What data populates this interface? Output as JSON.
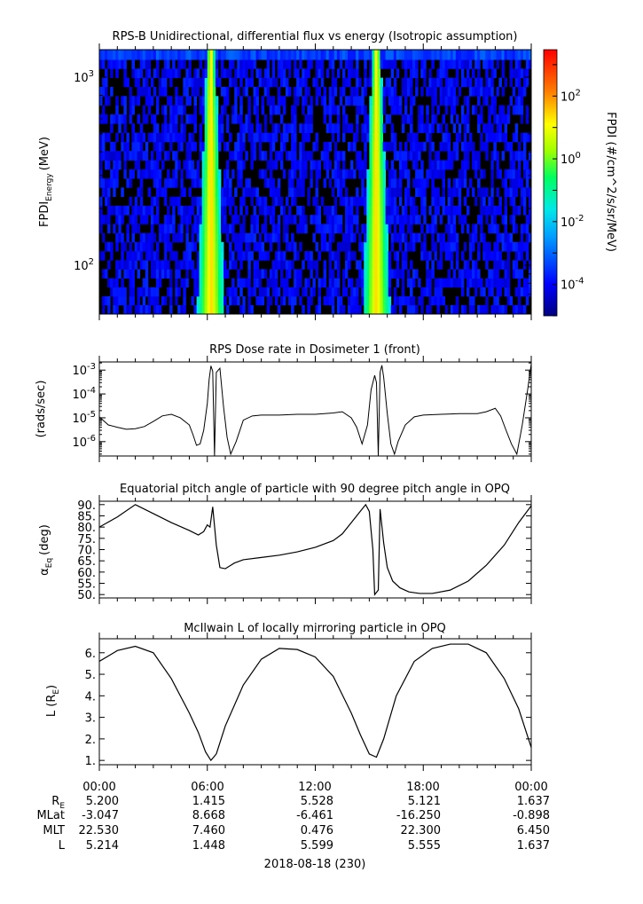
{
  "chart_data": [
    {
      "type": "heatmap",
      "title": "RPS-B  Unidirectional, differential flux vs energy (Isotropic assumption)",
      "ylabel_main": "FPDI",
      "ylabel_sub": "Energy",
      "ylabel_unit": "(MeV)",
      "yscale": "log",
      "ylim": [
        55,
        1400
      ],
      "yticks": [
        {
          "value": 100,
          "base": "10",
          "exp": "2"
        },
        {
          "value": 1000,
          "base": "10",
          "exp": "3"
        }
      ],
      "energy_bins": [
        58,
        65,
        72,
        81,
        90,
        101,
        112,
        126,
        140,
        157,
        175,
        196,
        219,
        245,
        274,
        306,
        342,
        383,
        428,
        479,
        536,
        600,
        670,
        750,
        840,
        940,
        1050,
        1175,
        1310
      ],
      "colorbar": {
        "label": "FPDI (#/cm^2/s/sr/MeV)",
        "scale": "log",
        "range": [
          1e-05,
          3000.0
        ],
        "ticks": [
          {
            "value": 0.0001,
            "base": "10",
            "exp": "-4"
          },
          {
            "value": 0.01,
            "base": "10",
            "exp": "-2"
          },
          {
            "value": 1,
            "base": "10",
            "exp": "0"
          },
          {
            "value": 100,
            "base": "10",
            "exp": "2"
          }
        ]
      },
      "belt_crossings_hours": [
        6.2,
        15.4
      ],
      "background_flux": 0.001,
      "peak_flux": 30
    },
    {
      "type": "line",
      "title": "RPS  Dose rate in Dosimeter 1 (front)",
      "ylabel": "(rads/sec)",
      "yscale": "log",
      "ylim": [
        2.5e-07,
        0.0022
      ],
      "yticks": [
        {
          "value": 1e-06,
          "base": "10",
          "exp": "-6"
        },
        {
          "value": 1e-05,
          "base": "10",
          "exp": "-5"
        },
        {
          "value": 0.0001,
          "base": "10",
          "exp": "-4"
        },
        {
          "value": 0.001,
          "base": "10",
          "exp": "-3"
        }
      ],
      "x_hours": [
        0,
        0.5,
        1,
        1.5,
        2,
        2.5,
        3,
        3.5,
        4,
        4.5,
        5,
        5.2,
        5.4,
        5.6,
        5.8,
        6.0,
        6.1,
        6.2,
        6.3,
        6.4,
        6.5,
        6.7,
        6.9,
        7.1,
        7.3,
        7.6,
        8.0,
        8.5,
        9,
        10,
        11,
        12,
        13,
        13.5,
        14,
        14.3,
        14.6,
        14.9,
        15.1,
        15.3,
        15.4,
        15.5,
        15.6,
        15.7,
        15.8,
        16.0,
        16.2,
        16.4,
        16.6,
        17,
        17.5,
        18,
        19,
        20,
        21,
        21.5,
        22,
        22.3,
        22.6,
        22.9,
        23.2,
        23.5,
        23.8,
        24
      ],
      "values": [
        1.1e-05,
        5e-06,
        4e-06,
        3.3e-06,
        3.5e-06,
        4.3e-06,
        7e-06,
        1.2e-05,
        1.4e-05,
        1e-05,
        5e-06,
        2e-06,
        7e-07,
        8e-07,
        3e-06,
        4e-05,
        0.0004,
        0.0015,
        0.0009,
        2.5e-07,
        0.0008,
        0.0012,
        3e-05,
        1.5e-06,
        3e-07,
        1e-06,
        8e-06,
        1.2e-05,
        1.3e-05,
        1.3e-05,
        1.4e-05,
        1.4e-05,
        1.6e-05,
        1.8e-05,
        1e-05,
        4e-06,
        8e-07,
        5e-06,
        0.00015,
        0.0006,
        0.0003,
        2.5e-07,
        0.0008,
        0.0016,
        0.0005,
        1.5e-05,
        8e-07,
        3e-07,
        1e-06,
        5e-06,
        1.1e-05,
        1.3e-05,
        1.4e-05,
        1.5e-05,
        1.5e-05,
        1.8e-05,
        2.5e-05,
        1.2e-05,
        3e-06,
        8e-07,
        3e-07,
        5e-06,
        0.00015,
        0.0018
      ]
    },
    {
      "type": "line",
      "title": "Equatorial pitch angle of particle with 90 degree pitch angle in OPQ",
      "ylabel_main": "α",
      "ylabel_sub": "Eq",
      "ylabel_unit": "(deg)",
      "ylim": [
        48.5,
        91.5
      ],
      "yticks": [
        50,
        55,
        60,
        65,
        70,
        75,
        80,
        85,
        90
      ],
      "ytick_labels": [
        "50.",
        "55.",
        "60.",
        "65.",
        "70.",
        "75.",
        "80.",
        "85.",
        "90."
      ],
      "x_hours": [
        0,
        1,
        2,
        3,
        4,
        5,
        5.5,
        5.8,
        6.0,
        6.15,
        6.3,
        6.5,
        6.7,
        7.0,
        7.5,
        8,
        9,
        10,
        11,
        12,
        13,
        13.5,
        14,
        14.5,
        14.8,
        15.0,
        15.2,
        15.3,
        15.5,
        15.6,
        15.8,
        16.0,
        16.3,
        16.7,
        17.2,
        17.8,
        18.5,
        19.5,
        20.5,
        21.5,
        22.5,
        23.3,
        24
      ],
      "values": [
        80,
        84.5,
        90,
        86,
        82,
        78.5,
        76.5,
        78,
        81,
        80,
        89,
        72,
        62,
        61.5,
        64,
        65.5,
        66.5,
        67.5,
        69,
        71,
        74,
        77,
        82,
        87,
        90,
        87,
        70,
        50,
        52,
        88,
        73,
        62,
        56,
        53,
        51.2,
        50.5,
        50.5,
        52,
        56,
        63,
        72,
        82,
        89.5
      ]
    },
    {
      "type": "line",
      "title": "McIlwain L of locally mirroring particle in OPQ",
      "ylabel_main": "L (R",
      "ylabel_sub": "E",
      "ylabel_tail": ")",
      "ylim": [
        0.8,
        6.65
      ],
      "yticks": [
        1,
        2,
        3,
        4,
        5,
        6
      ],
      "ytick_labels": [
        "1.",
        "2.",
        "3.",
        "4.",
        "5.",
        "6."
      ],
      "x_hours": [
        0,
        1,
        2,
        3,
        4,
        5,
        5.5,
        5.9,
        6.2,
        6.5,
        7,
        8,
        9,
        10,
        11,
        12,
        13,
        14,
        14.5,
        15,
        15.4,
        15.8,
        16.5,
        17.5,
        18.5,
        19.5,
        20.5,
        21.5,
        22.5,
        23.3,
        24
      ],
      "values": [
        5.6,
        6.1,
        6.3,
        6.0,
        4.8,
        3.2,
        2.3,
        1.4,
        1.0,
        1.3,
        2.6,
        4.5,
        5.7,
        6.2,
        6.15,
        5.8,
        4.9,
        3.2,
        2.2,
        1.3,
        1.15,
        2.0,
        4.0,
        5.6,
        6.2,
        6.4,
        6.4,
        6.0,
        4.8,
        3.4,
        1.6
      ]
    }
  ],
  "x_axis": {
    "ticks": [
      "00:00",
      "06:00",
      "12:00",
      "18:00",
      "00:00"
    ],
    "ephemeris_rows": [
      {
        "label": "R",
        "label_sub": "E",
        "values": [
          "5.200",
          "1.415",
          "5.528",
          "5.121",
          "1.637"
        ]
      },
      {
        "label": "MLat",
        "label_sub": "",
        "values": [
          "-3.047",
          "8.668",
          "-6.461",
          "-16.250",
          "-0.898"
        ]
      },
      {
        "label": "MLT",
        "label_sub": "",
        "values": [
          "22.530",
          "7.460",
          "0.476",
          "22.300",
          "6.450"
        ]
      },
      {
        "label": "L",
        "label_sub": "",
        "values": [
          "5.214",
          "1.448",
          "5.599",
          "5.555",
          "1.637"
        ]
      }
    ],
    "date_label": "2018-08-18 (230)"
  }
}
